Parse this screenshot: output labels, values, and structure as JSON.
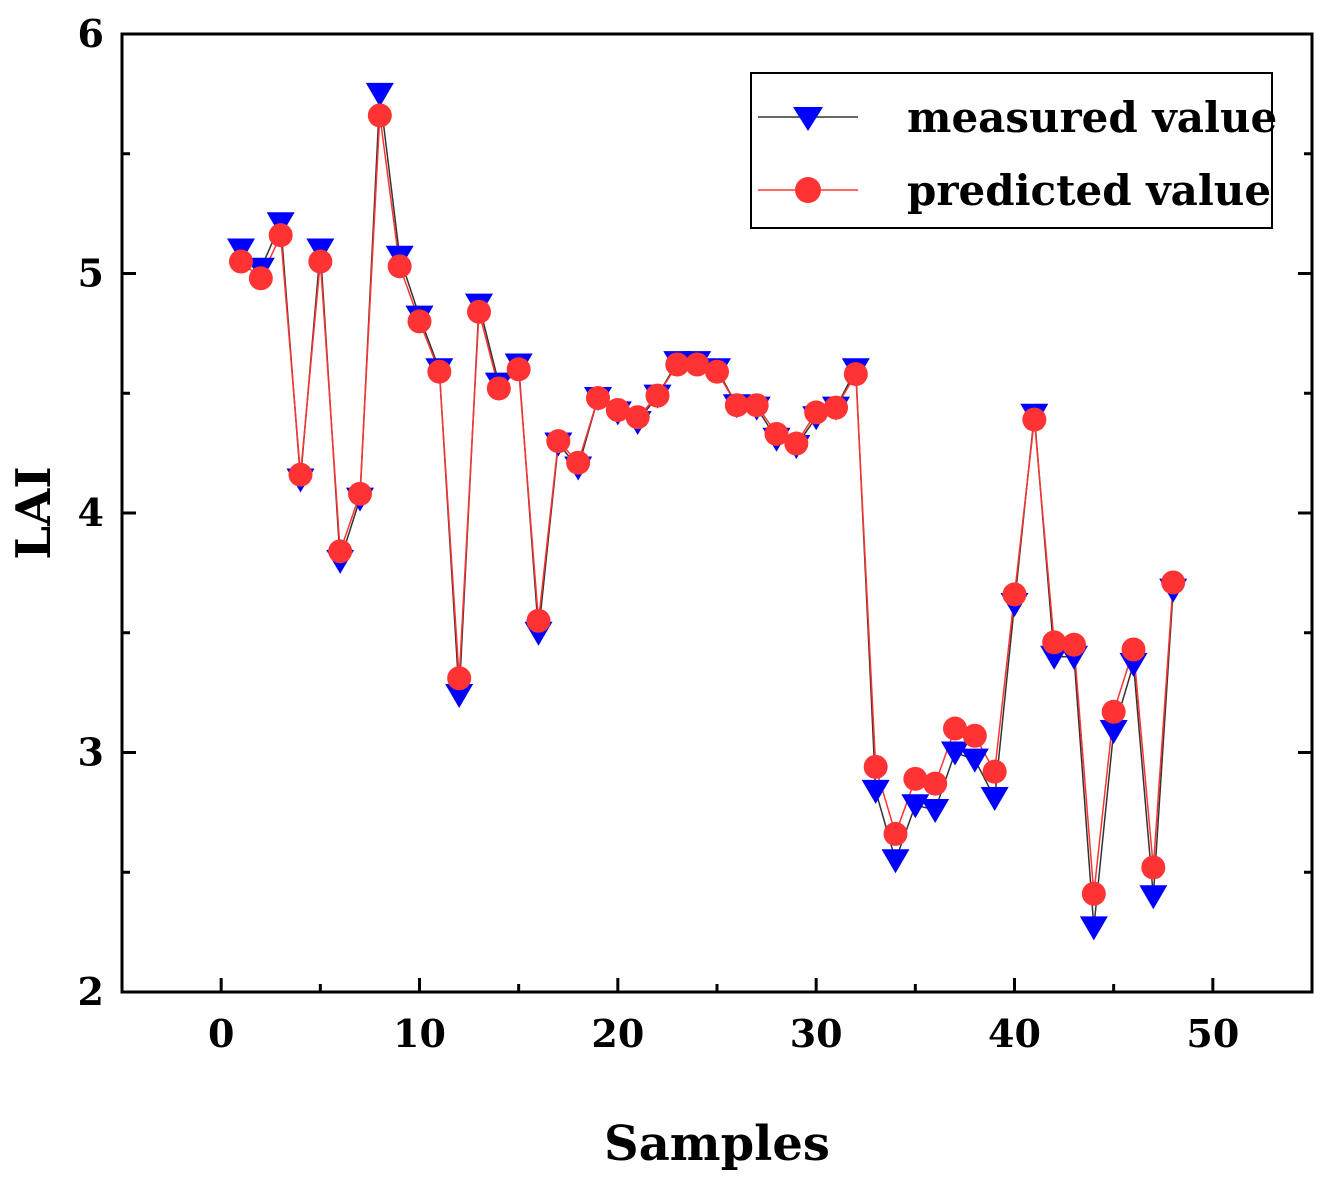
{
  "chart_data": {
    "type": "line",
    "title": "",
    "xlabel": "Samples",
    "ylabel": "LAI",
    "xlim": [
      -5,
      55
    ],
    "ylim": [
      2,
      6
    ],
    "xticks": [
      0,
      10,
      20,
      30,
      40,
      50
    ],
    "yticks": [
      2,
      3,
      4,
      5,
      6
    ],
    "legend_position": "top-right",
    "x": [
      1,
      2,
      3,
      4,
      5,
      6,
      7,
      8,
      9,
      10,
      11,
      12,
      13,
      14,
      15,
      16,
      17,
      18,
      19,
      20,
      21,
      22,
      23,
      24,
      25,
      26,
      27,
      28,
      29,
      30,
      31,
      32,
      33,
      34,
      35,
      36,
      37,
      38,
      39,
      40,
      41,
      42,
      43,
      44,
      45,
      46,
      47,
      48
    ],
    "series": [
      {
        "name": "measured value",
        "color": "#0000ff",
        "line_color": "#333333",
        "marker": "triangle-down",
        "values": [
          5.1,
          5.02,
          5.21,
          4.14,
          5.1,
          3.8,
          4.06,
          5.75,
          5.07,
          4.82,
          4.6,
          3.24,
          4.87,
          4.54,
          4.62,
          3.5,
          4.29,
          4.19,
          4.48,
          4.42,
          4.38,
          4.49,
          4.63,
          4.63,
          4.6,
          4.45,
          4.44,
          4.31,
          4.28,
          4.4,
          4.44,
          4.6,
          2.84,
          2.55,
          2.78,
          2.76,
          3.0,
          2.97,
          2.81,
          3.62,
          4.41,
          3.4,
          3.4,
          2.27,
          3.09,
          3.37,
          2.4,
          3.68
        ]
      },
      {
        "name": "predicted value",
        "color": "#ff3333",
        "line_color": "#ff3333",
        "marker": "circle",
        "values": [
          5.05,
          4.98,
          5.16,
          4.16,
          5.05,
          3.84,
          4.08,
          5.66,
          5.03,
          4.8,
          4.59,
          3.31,
          4.84,
          4.52,
          4.6,
          3.55,
          4.3,
          4.21,
          4.48,
          4.43,
          4.4,
          4.49,
          4.62,
          4.62,
          4.59,
          4.45,
          4.45,
          4.33,
          4.29,
          4.42,
          4.44,
          4.58,
          2.94,
          2.66,
          2.89,
          2.87,
          3.1,
          3.07,
          2.92,
          3.66,
          4.39,
          3.46,
          3.45,
          2.41,
          3.17,
          3.43,
          2.52,
          3.71
        ]
      }
    ]
  }
}
